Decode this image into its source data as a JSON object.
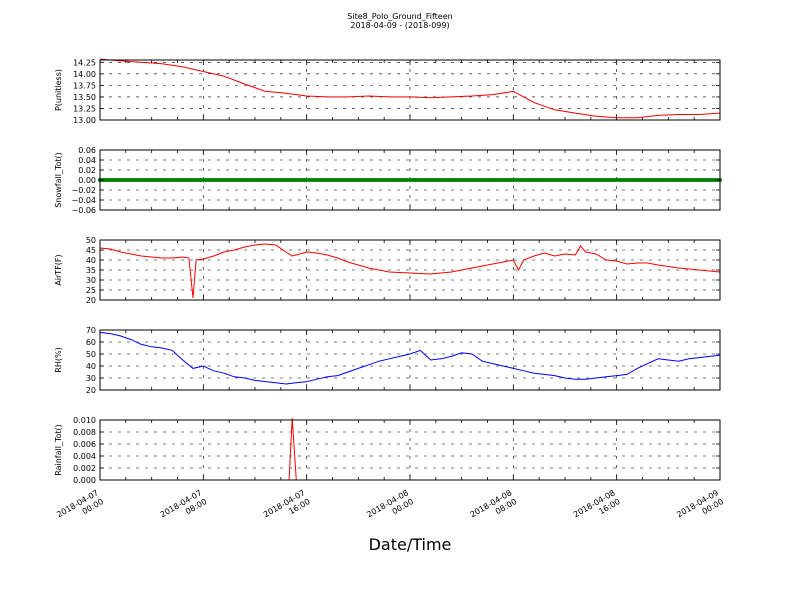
{
  "figure": {
    "title": "Site8_Polo_Ground_Fifteen",
    "subtitle": "2018-04-09 - (2018-099)",
    "xlabel": "Date/Time"
  },
  "chart_data": [
    {
      "type": "line",
      "ylabel": "P(unitless)",
      "ylim": [
        13.0,
        14.3
      ],
      "yticks": [
        "13.00",
        "13.25",
        "13.50",
        "13.75",
        "14.00",
        "14.25"
      ],
      "ytick_values": [
        13.0,
        13.25,
        13.5,
        13.75,
        14.0,
        14.25
      ],
      "grid": true,
      "series": [
        {
          "color": "#ff0000",
          "x": [
            0,
            2,
            4,
            6,
            8,
            10,
            12,
            14,
            16,
            17,
            18,
            19,
            20,
            22,
            24,
            26,
            28,
            30,
            32,
            34,
            36,
            38,
            40,
            41,
            42,
            43,
            44,
            46,
            48,
            50,
            52,
            54,
            56,
            58,
            60
          ],
          "values": [
            14.32,
            14.28,
            14.25,
            14.22,
            14.15,
            14.05,
            13.95,
            13.78,
            13.62,
            13.6,
            13.58,
            13.55,
            13.52,
            13.5,
            13.5,
            13.52,
            13.5,
            13.5,
            13.48,
            13.5,
            13.52,
            13.55,
            13.62,
            13.5,
            13.38,
            13.3,
            13.22,
            13.15,
            13.08,
            13.05,
            13.05,
            13.1,
            13.12,
            13.12,
            13.15
          ]
        }
      ]
    },
    {
      "type": "scatter",
      "ylabel": "Snowfall_Tot()",
      "ylim": [
        -0.06,
        0.06
      ],
      "yticks": [
        "−0.06",
        "−0.04",
        "−0.02",
        "0.00",
        "0.02",
        "0.04",
        "0.06"
      ],
      "ytick_values": [
        -0.06,
        -0.04,
        -0.02,
        0.0,
        0.02,
        0.04,
        0.06
      ],
      "grid": true,
      "series": [
        {
          "color": "#008000",
          "constant": 0.0,
          "x_start": 0,
          "x_end": 60,
          "x_step": 0.25
        }
      ]
    },
    {
      "type": "line",
      "ylabel": "AirTF(F)",
      "ylim": [
        20,
        50
      ],
      "yticks": [
        "20",
        "25",
        "30",
        "35",
        "40",
        "45",
        "50"
      ],
      "ytick_values": [
        20,
        25,
        30,
        35,
        40,
        45,
        50
      ],
      "grid": true,
      "series": [
        {
          "color": "#ff0000",
          "x": [
            0,
            1,
            2,
            3,
            4,
            5,
            6,
            7,
            8,
            8.6,
            9,
            9.3,
            10,
            11,
            12,
            13,
            14,
            15,
            16,
            17,
            18,
            18.6,
            19,
            20,
            21,
            22,
            23,
            24,
            26,
            28,
            30,
            32,
            34,
            36,
            38,
            40,
            40.5,
            41,
            42,
            43,
            44,
            45,
            46,
            46.5,
            47,
            48,
            49,
            50,
            51,
            52,
            53,
            54,
            56,
            58,
            60
          ],
          "values": [
            46,
            45.5,
            44,
            43,
            42,
            41.5,
            41,
            41,
            41.5,
            41,
            21,
            40,
            40.5,
            42,
            44,
            45,
            46.5,
            47.5,
            48,
            47.5,
            44,
            42,
            42.5,
            44,
            43.5,
            42.5,
            41,
            39,
            36,
            34,
            33.5,
            33,
            34,
            36,
            38,
            40,
            35,
            40,
            42,
            43.5,
            42,
            43,
            42.5,
            47,
            44,
            43,
            40,
            39.5,
            38,
            38.5,
            38.5,
            37.5,
            36,
            35,
            34
          ]
        }
      ]
    },
    {
      "type": "line",
      "ylabel": "RH(%)",
      "ylim": [
        20,
        70
      ],
      "yticks": [
        "20",
        "30",
        "40",
        "50",
        "60",
        "70"
      ],
      "ytick_values": [
        20,
        30,
        40,
        50,
        60,
        70
      ],
      "grid": true,
      "series": [
        {
          "color": "#0000ff",
          "x": [
            0,
            1,
            2,
            3,
            4,
            5,
            6,
            7,
            8,
            9,
            10,
            11,
            12,
            13,
            14,
            15,
            16,
            17,
            18,
            19,
            20,
            21,
            22,
            23,
            24,
            25,
            26,
            27,
            28,
            29,
            30,
            31,
            32,
            33,
            34,
            35,
            36,
            37,
            38,
            39,
            40,
            41,
            42,
            43,
            44,
            45,
            46,
            47,
            48,
            49,
            50,
            51,
            52,
            53,
            54,
            55,
            56,
            57,
            58,
            59,
            60
          ],
          "values": [
            68,
            67,
            65,
            62,
            58,
            56,
            55,
            53,
            45,
            38,
            40,
            36,
            34,
            31,
            30,
            28,
            27,
            26,
            25,
            26,
            27,
            29,
            31,
            32,
            35,
            38,
            41,
            44,
            46,
            48,
            50,
            53,
            45,
            46,
            48,
            51,
            50,
            44,
            42,
            40,
            38,
            36,
            34,
            33,
            32,
            30,
            29,
            29,
            30,
            31,
            32,
            33,
            38,
            42,
            46,
            45,
            44,
            46,
            47,
            48,
            49
          ]
        }
      ]
    },
    {
      "type": "line",
      "ylabel": "Rainfall_Tot()",
      "ylim": [
        0.0,
        0.01
      ],
      "yticks": [
        "0.000",
        "0.002",
        "0.004",
        "0.006",
        "0.008",
        "0.010"
      ],
      "ytick_values": [
        0.0,
        0.002,
        0.004,
        0.006,
        0.008,
        0.01
      ],
      "grid": true,
      "series": [
        {
          "color": "#ff0000",
          "x": [
            0,
            18.3,
            18.6,
            19,
            60
          ],
          "values": [
            0,
            0,
            0.0103,
            0,
            0
          ]
        }
      ]
    }
  ],
  "x_axis": {
    "xlim": [
      0,
      60
    ],
    "tick_values": [
      0,
      10,
      20,
      30,
      40,
      50,
      60
    ],
    "tick_labels": [
      [
        "2018-04-07",
        "00:00"
      ],
      [
        "2018-04-07",
        "08:00"
      ],
      [
        "2018-04-07",
        "16:00"
      ],
      [
        "2018-04-08",
        "00:00"
      ],
      [
        "2018-04-08",
        "08:00"
      ],
      [
        "2018-04-08",
        "16:00"
      ],
      [
        "2018-04-09",
        "00:00"
      ]
    ]
  }
}
